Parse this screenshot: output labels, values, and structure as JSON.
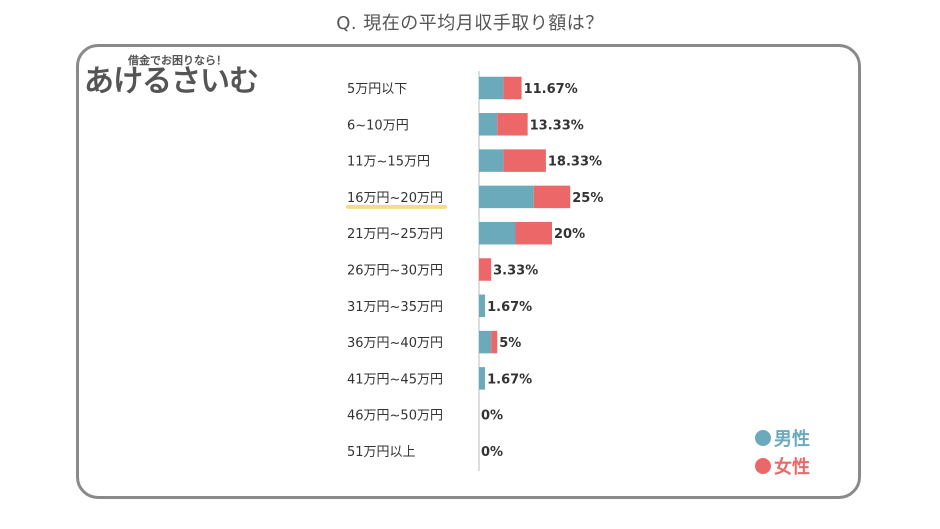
{
  "question": "Q. 現在の平均月収手取り額は？",
  "logo": {
    "sub": "借金でお困りなら！",
    "main": "あけるさいむ"
  },
  "colors": {
    "male": "#6aaabb",
    "female": "#ec6868",
    "highlight": "#f7dc82",
    "axis": "#bbbbbb"
  },
  "chart_data": {
    "type": "bar",
    "orientation": "horizontal",
    "stacked": true,
    "categories": [
      "5万円以下",
      "6~10万円",
      "11万~15万円",
      "16万円~20万円",
      "21万円~25万円",
      "26万円~30万円",
      "31万円~35万円",
      "36万円~40万円",
      "41万円~45万円",
      "46万円~50万円",
      "51万円以上"
    ],
    "highlighted_category": "16万円~20万円",
    "series": [
      {
        "name": "男性",
        "color": "#6aaabb",
        "values": [
          6.67,
          5.0,
          6.67,
          15.0,
          10.0,
          0,
          1.67,
          3.33,
          1.67,
          0,
          0
        ]
      },
      {
        "name": "女性",
        "color": "#ec6868",
        "values": [
          5.0,
          8.33,
          11.66,
          10.0,
          10.0,
          3.33,
          0,
          1.67,
          0,
          0,
          0
        ]
      }
    ],
    "totals_labels": [
      "11.67%",
      "13.33%",
      "18.33%",
      "25%",
      "20%",
      "3.33%",
      "1.67%",
      "5%",
      "1.67%",
      "0%",
      "0%"
    ],
    "xlim": [
      0,
      100
    ],
    "legend": "bottom-right"
  }
}
